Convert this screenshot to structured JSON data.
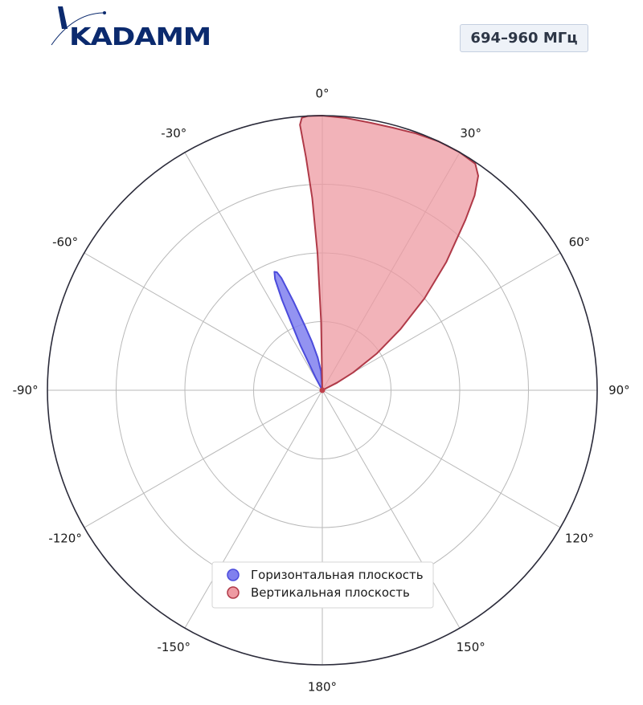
{
  "header": {
    "logo_text": "KADAMM",
    "frequency_badge": "694–960 МГц"
  },
  "chart_data": {
    "type": "polar",
    "theta_zero": "top",
    "theta_direction": "clockwise",
    "angle_ticks": [
      0,
      30,
      60,
      90,
      120,
      150,
      180,
      -150,
      -120,
      -90,
      -60,
      -30
    ],
    "angle_tick_labels": [
      "0°",
      "30°",
      "60°",
      "90°",
      "120°",
      "150°",
      "180°",
      "-150°",
      "-120°",
      "-90°",
      "-60°",
      "-30°"
    ],
    "radial_rings": [
      0.25,
      0.5,
      0.75,
      1.0
    ],
    "rlim": [
      0,
      1
    ],
    "grid": true,
    "legend_position": "lower center",
    "series": [
      {
        "name": "Горизонтальная плоскость",
        "color": "#4b4bdc",
        "fill": "#8080ee",
        "points": [
          [
            -30,
            0.0
          ],
          [
            -28,
            0.05
          ],
          [
            -26,
            0.18
          ],
          [
            -24,
            0.36
          ],
          [
            -23,
            0.44
          ],
          [
            -22,
            0.465
          ],
          [
            -21,
            0.46
          ],
          [
            -20,
            0.435
          ],
          [
            -18,
            0.34
          ],
          [
            -15,
            0.24
          ],
          [
            -12,
            0.18
          ],
          [
            -8,
            0.12
          ],
          [
            -4,
            0.07
          ],
          [
            0,
            0.0
          ]
        ]
      },
      {
        "name": "Вертикальная плоскость",
        "color": "#b03a48",
        "fill": "#ee9aa2",
        "points": [
          [
            0,
            0.0
          ],
          [
            -1,
            0.25
          ],
          [
            -2,
            0.5
          ],
          [
            -3,
            0.7
          ],
          [
            -4,
            0.85
          ],
          [
            -4.8,
            0.97
          ],
          [
            -4.3,
            0.995
          ],
          [
            -3,
            1.0
          ],
          [
            0,
            1.0
          ],
          [
            5,
            0.995
          ],
          [
            10,
            0.99
          ],
          [
            15,
            0.99
          ],
          [
            20,
            0.995
          ],
          [
            25,
            1.0
          ],
          [
            30,
            1.0
          ],
          [
            34,
            0.995
          ],
          [
            36,
            0.965
          ],
          [
            38,
            0.9
          ],
          [
            40,
            0.81
          ],
          [
            44,
            0.65
          ],
          [
            48,
            0.5
          ],
          [
            52,
            0.36
          ],
          [
            56,
            0.24
          ],
          [
            60,
            0.13
          ],
          [
            63,
            0.06
          ],
          [
            66,
            0.0
          ]
        ]
      }
    ]
  }
}
